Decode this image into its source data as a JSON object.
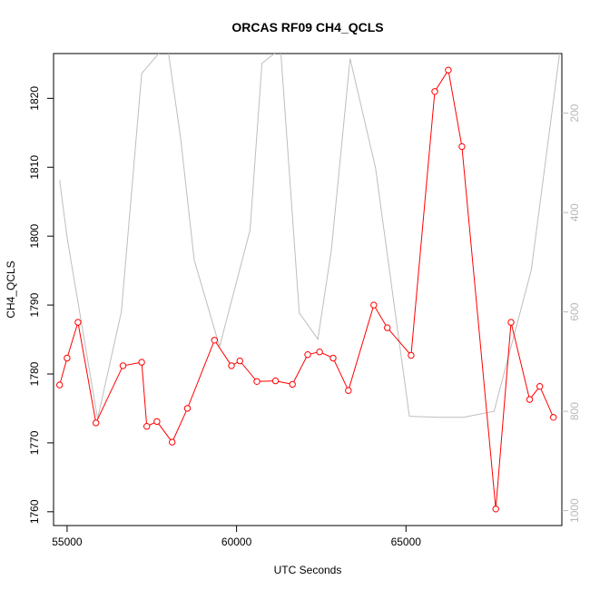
{
  "chart_data": {
    "type": "line",
    "title": "ORCAS RF09 CH4_QCLS",
    "xlabel": "UTC Seconds",
    "ylabel": "CH4_QCLS",
    "xlim": [
      54600,
      69600
    ],
    "ylim": [
      1758,
      1826.5
    ],
    "x_ticks": [
      55000,
      60000,
      65000
    ],
    "x_tick_labels": [
      "55000",
      "60000",
      "65000"
    ],
    "y_ticks": [
      1760,
      1770,
      1780,
      1790,
      1800,
      1810,
      1820
    ],
    "y_tick_labels": [
      "1760",
      "1770",
      "1780",
      "1790",
      "1800",
      "1810",
      "1820"
    ],
    "y2_ticks": [
      200,
      400,
      600,
      800,
      1000
    ],
    "y2_tick_labels": [
      "200",
      "400",
      "600",
      "800",
      "1000"
    ],
    "y2lim": [
      1030,
      80
    ],
    "grid": false,
    "legend": "none",
    "series": [
      {
        "style": "line-with-open-circles",
        "color": "#ff0000",
        "axis": "left",
        "x": [
          54780,
          55000,
          55320,
          55850,
          56650,
          57200,
          57350,
          57650,
          58100,
          58550,
          59350,
          59850,
          60100,
          60600,
          61150,
          61650,
          62100,
          62450,
          62850,
          63300,
          64050,
          64450,
          65150,
          65850,
          66250,
          66650,
          67650,
          68100,
          68650,
          68950,
          69350
        ],
        "y": [
          1778.4,
          1782.3,
          1787.5,
          1772.9,
          1781.2,
          1781.7,
          1772.4,
          1773.1,
          1770.1,
          1775.0,
          1784.9,
          1781.2,
          1781.9,
          1778.9,
          1779.0,
          1778.5,
          1782.8,
          1783.2,
          1782.3,
          1777.6,
          1790.0,
          1786.7,
          1782.7,
          1821.0,
          1824.1,
          1813.0,
          1760.4,
          1787.5,
          1776.3,
          1778.2,
          1773.7
        ]
      },
      {
        "style": "line",
        "color": "#bebebe",
        "axis": "right",
        "x": [
          54780,
          55000,
          55900,
          56600,
          57200,
          57950,
          58350,
          58750,
          59500,
          60400,
          60750,
          61300,
          61850,
          62400,
          62800,
          63350,
          64100,
          65100,
          66000,
          66700,
          67600,
          68700,
          69600
        ],
        "y": [
          335,
          450,
          815,
          600,
          120,
          60,
          250,
          495,
          670,
          435,
          100,
          70,
          602,
          655,
          475,
          90,
          310,
          810,
          812,
          812,
          800,
          515,
          45
        ]
      }
    ]
  }
}
